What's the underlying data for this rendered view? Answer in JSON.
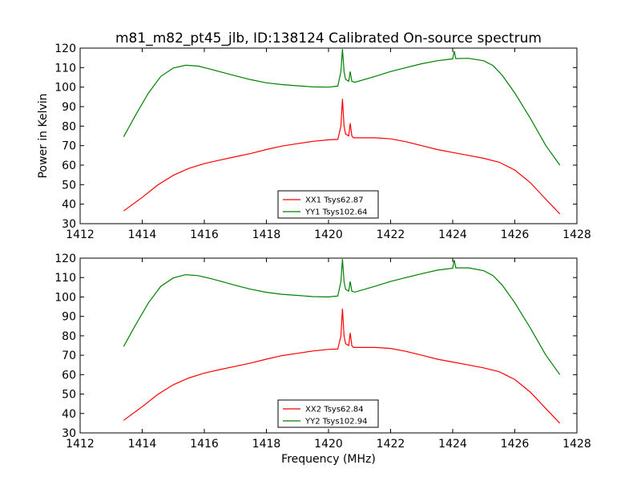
{
  "figure": {
    "title": "m81_m82_pt45_jlb, ID:138124 Calibrated On-source spectrum"
  },
  "chart_data": [
    {
      "type": "line",
      "title": "m81_m82_pt45_jlb, ID:138124 Calibrated On-source spectrum",
      "xlabel": "",
      "ylabel": "Power in Kelvin",
      "xlim": [
        1412,
        1428
      ],
      "ylim": [
        30,
        120
      ],
      "xticks": [
        1412,
        1414,
        1416,
        1418,
        1420,
        1422,
        1424,
        1426,
        1428
      ],
      "yticks": [
        30,
        40,
        50,
        60,
        70,
        80,
        90,
        100,
        110,
        120
      ],
      "grid": false,
      "legend": "lower-center",
      "series": [
        {
          "name": "XX1 Tsys62.87",
          "color": "#ff0000",
          "points": [
            [
              1413.4,
              36.5
            ],
            [
              1414.0,
              43.5
            ],
            [
              1414.5,
              49.8
            ],
            [
              1415.0,
              54.8
            ],
            [
              1415.5,
              58.3
            ],
            [
              1416.0,
              60.8
            ],
            [
              1416.5,
              62.6
            ],
            [
              1417.0,
              64.3
            ],
            [
              1417.5,
              66.0
            ],
            [
              1418.0,
              68.0
            ],
            [
              1418.5,
              69.8
            ],
            [
              1419.0,
              71.0
            ],
            [
              1419.5,
              72.2
            ],
            [
              1420.0,
              73.0
            ],
            [
              1420.3,
              73.2
            ],
            [
              1420.4,
              80.0
            ],
            [
              1420.45,
              94.0
            ],
            [
              1420.5,
              80.0
            ],
            [
              1420.55,
              76.0
            ],
            [
              1420.65,
              75.0
            ],
            [
              1420.7,
              81.5
            ],
            [
              1420.75,
              75.0
            ],
            [
              1420.8,
              74.0
            ],
            [
              1421.5,
              74.0
            ],
            [
              1422.0,
              73.5
            ],
            [
              1422.5,
              72.0
            ],
            [
              1423.0,
              70.0
            ],
            [
              1423.5,
              68.0
            ],
            [
              1424.0,
              66.5
            ],
            [
              1424.5,
              65.0
            ],
            [
              1425.0,
              63.5
            ],
            [
              1425.5,
              61.5
            ],
            [
              1426.0,
              57.5
            ],
            [
              1426.5,
              51.0
            ],
            [
              1427.0,
              42.5
            ],
            [
              1427.45,
              35.0
            ]
          ]
        },
        {
          "name": "YY1 Tsys102.64",
          "color": "#008000",
          "points": [
            [
              1413.4,
              74.5
            ],
            [
              1413.8,
              86.0
            ],
            [
              1414.2,
              97.0
            ],
            [
              1414.6,
              105.5
            ],
            [
              1415.0,
              109.8
            ],
            [
              1415.4,
              111.2
            ],
            [
              1415.8,
              110.8
            ],
            [
              1416.2,
              109.2
            ],
            [
              1416.6,
              107.5
            ],
            [
              1417.0,
              105.8
            ],
            [
              1417.5,
              103.8
            ],
            [
              1418.0,
              102.2
            ],
            [
              1418.5,
              101.3
            ],
            [
              1419.0,
              100.7
            ],
            [
              1419.5,
              100.1
            ],
            [
              1420.0,
              100.0
            ],
            [
              1420.3,
              100.5
            ],
            [
              1420.4,
              108.0
            ],
            [
              1420.45,
              119.5
            ],
            [
              1420.5,
              108.0
            ],
            [
              1420.55,
              104.0
            ],
            [
              1420.65,
              103.0
            ],
            [
              1420.7,
              108.0
            ],
            [
              1420.75,
              103.0
            ],
            [
              1420.85,
              102.5
            ],
            [
              1421.5,
              105.5
            ],
            [
              1422.0,
              108.0
            ],
            [
              1422.5,
              110.0
            ],
            [
              1423.0,
              112.0
            ],
            [
              1423.5,
              113.5
            ],
            [
              1424.0,
              114.5
            ],
            [
              1424.05,
              118.5
            ],
            [
              1424.1,
              114.6
            ],
            [
              1424.5,
              114.8
            ],
            [
              1425.0,
              113.5
            ],
            [
              1425.3,
              111.0
            ],
            [
              1425.6,
              106.0
            ],
            [
              1426.0,
              97.0
            ],
            [
              1426.5,
              84.0
            ],
            [
              1427.0,
              70.0
            ],
            [
              1427.45,
              60.0
            ]
          ]
        }
      ]
    },
    {
      "type": "line",
      "title": "",
      "xlabel": "Frequency (MHz)",
      "ylabel": "",
      "xlim": [
        1412,
        1428
      ],
      "ylim": [
        30,
        120
      ],
      "xticks": [
        1412,
        1414,
        1416,
        1418,
        1420,
        1422,
        1424,
        1426,
        1428
      ],
      "yticks": [
        30,
        40,
        50,
        60,
        70,
        80,
        90,
        100,
        110,
        120
      ],
      "grid": false,
      "legend": "lower-center",
      "series": [
        {
          "name": "XX2 Tsys62.84",
          "color": "#ff0000",
          "points": [
            [
              1413.4,
              36.5
            ],
            [
              1414.0,
              43.5
            ],
            [
              1414.5,
              49.8
            ],
            [
              1415.0,
              54.8
            ],
            [
              1415.5,
              58.3
            ],
            [
              1416.0,
              60.8
            ],
            [
              1416.5,
              62.6
            ],
            [
              1417.0,
              64.3
            ],
            [
              1417.5,
              66.0
            ],
            [
              1418.0,
              68.0
            ],
            [
              1418.5,
              69.8
            ],
            [
              1419.0,
              71.0
            ],
            [
              1419.5,
              72.2
            ],
            [
              1420.0,
              73.0
            ],
            [
              1420.3,
              73.2
            ],
            [
              1420.4,
              80.0
            ],
            [
              1420.45,
              94.0
            ],
            [
              1420.5,
              80.0
            ],
            [
              1420.55,
              76.0
            ],
            [
              1420.65,
              75.0
            ],
            [
              1420.7,
              81.5
            ],
            [
              1420.75,
              75.0
            ],
            [
              1420.8,
              74.0
            ],
            [
              1421.5,
              74.0
            ],
            [
              1422.0,
              73.5
            ],
            [
              1422.5,
              72.0
            ],
            [
              1423.0,
              70.0
            ],
            [
              1423.5,
              68.0
            ],
            [
              1424.0,
              66.5
            ],
            [
              1424.5,
              65.0
            ],
            [
              1425.0,
              63.5
            ],
            [
              1425.5,
              61.5
            ],
            [
              1426.0,
              57.5
            ],
            [
              1426.5,
              51.0
            ],
            [
              1427.0,
              42.5
            ],
            [
              1427.45,
              35.0
            ]
          ]
        },
        {
          "name": "YY2 Tsys102.94",
          "color": "#008000",
          "points": [
            [
              1413.4,
              74.5
            ],
            [
              1413.8,
              86.0
            ],
            [
              1414.2,
              97.0
            ],
            [
              1414.6,
              105.5
            ],
            [
              1415.0,
              109.8
            ],
            [
              1415.4,
              111.5
            ],
            [
              1415.8,
              111.0
            ],
            [
              1416.2,
              109.5
            ],
            [
              1416.6,
              107.8
            ],
            [
              1417.0,
              106.0
            ],
            [
              1417.5,
              104.0
            ],
            [
              1418.0,
              102.4
            ],
            [
              1418.5,
              101.4
            ],
            [
              1419.0,
              100.8
            ],
            [
              1419.5,
              100.2
            ],
            [
              1420.0,
              100.0
            ],
            [
              1420.3,
              100.5
            ],
            [
              1420.4,
              108.0
            ],
            [
              1420.45,
              119.5
            ],
            [
              1420.5,
              108.0
            ],
            [
              1420.55,
              104.0
            ],
            [
              1420.65,
              103.0
            ],
            [
              1420.7,
              108.0
            ],
            [
              1420.75,
              103.0
            ],
            [
              1420.85,
              102.5
            ],
            [
              1421.5,
              105.5
            ],
            [
              1422.0,
              108.0
            ],
            [
              1422.5,
              110.0
            ],
            [
              1423.0,
              112.0
            ],
            [
              1423.5,
              113.8
            ],
            [
              1424.0,
              114.8
            ],
            [
              1424.05,
              119.0
            ],
            [
              1424.1,
              115.0
            ],
            [
              1424.5,
              115.0
            ],
            [
              1425.0,
              113.5
            ],
            [
              1425.3,
              111.0
            ],
            [
              1425.6,
              106.0
            ],
            [
              1426.0,
              97.0
            ],
            [
              1426.5,
              84.0
            ],
            [
              1427.0,
              70.0
            ],
            [
              1427.45,
              60.0
            ]
          ]
        }
      ]
    }
  ]
}
